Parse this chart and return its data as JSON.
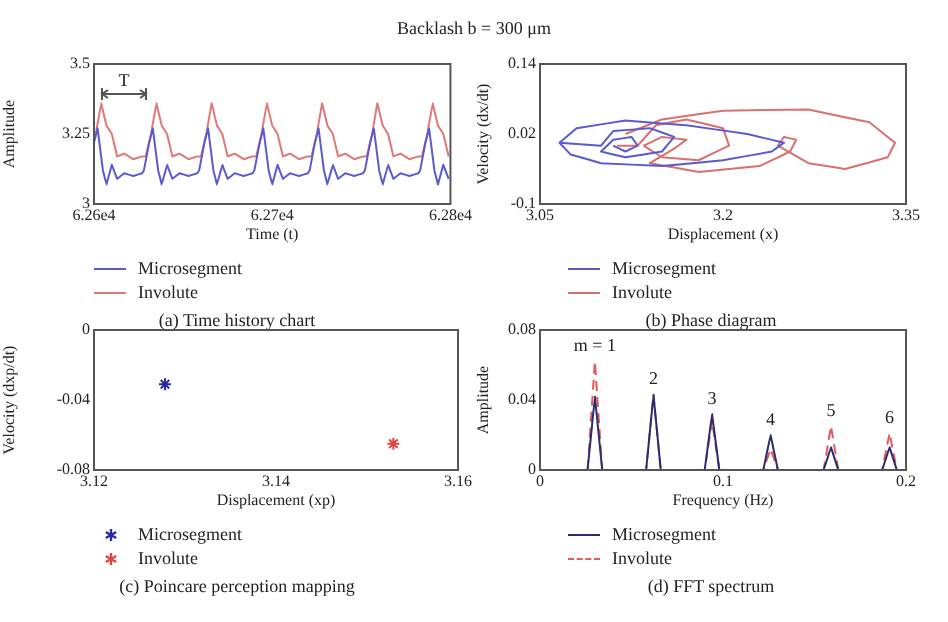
{
  "chart_data": [
    {
      "type": "line",
      "title": "Backlash b = 300 μm",
      "xlabel": "Time (t)",
      "ylabel": "Amplitude",
      "legend": "bottom",
      "marker": "none",
      "xlim": [
        62600,
        62800
      ],
      "xticks": [
        {
          "value": 62600,
          "label": "6.26e4"
        },
        {
          "value": 62700,
          "label": "6.27e4"
        },
        {
          "value": 62800,
          "label": "6.28e4"
        }
      ],
      "ylim": [
        3,
        3.5
      ],
      "yticks": [
        3,
        3.25,
        3.5
      ],
      "annotations": [
        "T",
        "(a) Time history chart"
      ],
      "series": [
        {
          "name": "Microsegment",
          "color": "#5a5ad0",
          "x": [
            62600,
            62602,
            62605,
            62607,
            62610,
            62613,
            62617,
            62622,
            62627,
            62628,
            62631,
            62633,
            62636,
            62638,
            62641,
            62644,
            62648,
            62653,
            62658,
            62659,
            62662,
            62664,
            62667,
            62669,
            62672,
            62675,
            62679,
            62684,
            62689,
            62690,
            62693,
            62695,
            62698,
            62700,
            62703,
            62706,
            62710,
            62715,
            62720,
            62721,
            62724,
            62726,
            62729,
            62731,
            62734,
            62737,
            62741,
            62746,
            62751,
            62752,
            62755,
            62757,
            62760,
            62762,
            62765,
            62768,
            62772,
            62777,
            62782,
            62783,
            62786,
            62788,
            62791,
            62793,
            62796,
            62799
          ],
          "values": [
            3.22,
            3.27,
            3.12,
            3.07,
            3.14,
            3.09,
            3.11,
            3.1,
            3.11,
            3.12,
            3.22,
            3.27,
            3.12,
            3.07,
            3.14,
            3.09,
            3.11,
            3.1,
            3.11,
            3.12,
            3.22,
            3.27,
            3.12,
            3.07,
            3.14,
            3.09,
            3.11,
            3.1,
            3.11,
            3.12,
            3.22,
            3.27,
            3.12,
            3.07,
            3.14,
            3.09,
            3.11,
            3.1,
            3.11,
            3.12,
            3.22,
            3.27,
            3.12,
            3.07,
            3.14,
            3.09,
            3.11,
            3.1,
            3.11,
            3.12,
            3.22,
            3.27,
            3.12,
            3.07,
            3.14,
            3.09,
            3.11,
            3.1,
            3.11,
            3.12,
            3.22,
            3.27,
            3.12,
            3.07,
            3.14,
            3.09
          ]
        },
        {
          "name": "Involute",
          "color": "#e07878",
          "x": [
            62601,
            62604,
            62607,
            62610,
            62613,
            62617,
            62622,
            62627,
            62629,
            62632,
            62635,
            62638,
            62641,
            62644,
            62648,
            62653,
            62658,
            62660,
            62663,
            62666,
            62669,
            62672,
            62675,
            62679,
            62684,
            62689,
            62691,
            62694,
            62697,
            62700,
            62703,
            62706,
            62710,
            62715,
            62720,
            62722,
            62725,
            62728,
            62731,
            62734,
            62737,
            62741,
            62746,
            62751,
            62753,
            62756,
            62759,
            62762,
            62765,
            62768,
            62772,
            62777,
            62782,
            62784,
            62787,
            62790,
            62793,
            62796,
            62799
          ],
          "values": [
            3.25,
            3.36,
            3.28,
            3.25,
            3.17,
            3.18,
            3.16,
            3.17,
            3.17,
            3.25,
            3.36,
            3.28,
            3.25,
            3.17,
            3.18,
            3.16,
            3.17,
            3.17,
            3.25,
            3.36,
            3.28,
            3.25,
            3.17,
            3.18,
            3.16,
            3.17,
            3.17,
            3.25,
            3.36,
            3.28,
            3.25,
            3.17,
            3.18,
            3.16,
            3.17,
            3.17,
            3.25,
            3.36,
            3.28,
            3.25,
            3.17,
            3.18,
            3.16,
            3.17,
            3.17,
            3.25,
            3.36,
            3.28,
            3.25,
            3.17,
            3.18,
            3.16,
            3.17,
            3.17,
            3.25,
            3.36,
            3.28,
            3.25,
            3.17
          ]
        }
      ]
    },
    {
      "type": "line",
      "xlabel": "Displacement (x)",
      "ylabel": "Velocity (dx/dt)",
      "legend": "bottom",
      "marker": "none",
      "xlim": [
        3.05,
        3.35
      ],
      "xticks": [
        3.05,
        3.2,
        3.35
      ],
      "ylim": [
        -0.1,
        0.14
      ],
      "yticks": [
        -0.1,
        0.02,
        0.14
      ],
      "annotations": [
        "(b) Phase diagram"
      ],
      "series": [
        {
          "name": "Microsegment",
          "color": "#5a5ad0",
          "x": [
            3.066,
            3.08,
            3.12,
            3.17,
            3.22,
            3.25,
            3.24,
            3.2,
            3.15,
            3.1,
            3.075,
            3.066,
            3.1,
            3.11,
            3.14,
            3.16,
            3.15,
            3.12,
            3.1,
            3.11,
            3.125,
            3.13,
            3.12,
            3.11
          ],
          "values": [
            0.005,
            0.03,
            0.043,
            0.035,
            0.02,
            0.005,
            -0.01,
            -0.025,
            -0.035,
            -0.03,
            -0.015,
            0.005,
            0,
            0.025,
            0.03,
            0.015,
            -0.01,
            -0.02,
            -0.01,
            0.01,
            0.015,
            0,
            -0.01,
            0
          ]
        },
        {
          "name": "Involute",
          "color": "#d87070",
          "x": [
            3.113,
            3.13,
            3.145,
            3.17,
            3.2,
            3.205,
            3.18,
            3.15,
            3.135,
            3.15,
            3.17,
            3.16,
            3.14,
            3.18,
            3.23,
            3.255,
            3.26,
            3.25,
            3.245,
            3.27,
            3.3,
            3.335,
            3.341,
            3.32,
            3.27,
            3.2,
            3.15,
            3.12
          ],
          "values": [
            0,
            0,
            0.035,
            0.045,
            0.03,
            0,
            -0.025,
            -0.02,
            0,
            0.015,
            0.01,
            -0.005,
            -0.03,
            -0.045,
            -0.035,
            -0.01,
            0.01,
            0.015,
            0,
            -0.03,
            -0.04,
            -0.02,
            0.005,
            0.04,
            0.062,
            0.06,
            0.045,
            0.02
          ]
        }
      ]
    },
    {
      "type": "scatter",
      "xlabel": "Displacement (xp)",
      "ylabel": "Velocity (dxp/dt)",
      "legend": "bottom",
      "marker": "cross",
      "xlim": [
        3.12,
        3.16
      ],
      "xticks": [
        3.12,
        3.14,
        3.16
      ],
      "ylim": [
        -0.08,
        0
      ],
      "yticks": [
        -0.08,
        -0.04,
        0
      ],
      "annotations": [
        "(c) Poincare perception mapping"
      ],
      "series": [
        {
          "name": "Microsegment",
          "color": "#2a2aa0",
          "x": [
            3.1278
          ],
          "values": [
            -0.031
          ]
        },
        {
          "name": "Involute",
          "color": "#d84848",
          "x": [
            3.1529
          ],
          "values": [
            -0.065
          ]
        }
      ]
    },
    {
      "type": "line",
      "xlabel": "Frequency (Hz)",
      "ylabel": "Amplitude",
      "legend": "bottom",
      "marker": "none",
      "xlim": [
        0,
        0.2
      ],
      "xticks": [
        0,
        0.1,
        0.2
      ],
      "ylim": [
        0,
        0.08
      ],
      "yticks": [
        0,
        0.04,
        0.08
      ],
      "annotations": [
        {
          "text": "m = 1",
          "x": 0.03,
          "y": 0.062
        },
        {
          "text": "2",
          "x": 0.062,
          "y": 0.043
        },
        {
          "text": "3",
          "x": 0.094,
          "y": 0.032
        },
        {
          "text": "4",
          "x": 0.126,
          "y": 0.02
        },
        {
          "text": "5",
          "x": 0.159,
          "y": 0.025
        },
        {
          "text": "6",
          "x": 0.191,
          "y": 0.021
        },
        "(d) FFT spectrum"
      ],
      "series": [
        {
          "name": "Microsegment",
          "color": "#2b2b70",
          "line_style": "solid",
          "x": [
            0,
            0.026,
            0.03,
            0.034,
            0.058,
            0.062,
            0.066,
            0.09,
            0.094,
            0.098,
            0.122,
            0.126,
            0.13,
            0.155,
            0.159,
            0.163,
            0.187,
            0.191,
            0.195,
            0.2
          ],
          "values": [
            0,
            0,
            0.042,
            0,
            0,
            0.043,
            0,
            0,
            0.032,
            0,
            0,
            0.02,
            0,
            0,
            0.013,
            0,
            0,
            0.013,
            0,
            0
          ]
        },
        {
          "name": "Involute",
          "color": "#e05a5a",
          "line_style": "dashed",
          "x": [
            0,
            0.026,
            0.03,
            0.034,
            0.058,
            0.062,
            0.066,
            0.09,
            0.094,
            0.098,
            0.122,
            0.126,
            0.13,
            0.155,
            0.159,
            0.163,
            0.187,
            0.191,
            0.195,
            0.2
          ],
          "values": [
            0,
            0,
            0.062,
            0,
            0,
            0.043,
            0,
            0,
            0.028,
            0,
            0,
            0.012,
            0,
            0,
            0.025,
            0,
            0,
            0.021,
            0,
            0
          ]
        }
      ]
    }
  ]
}
